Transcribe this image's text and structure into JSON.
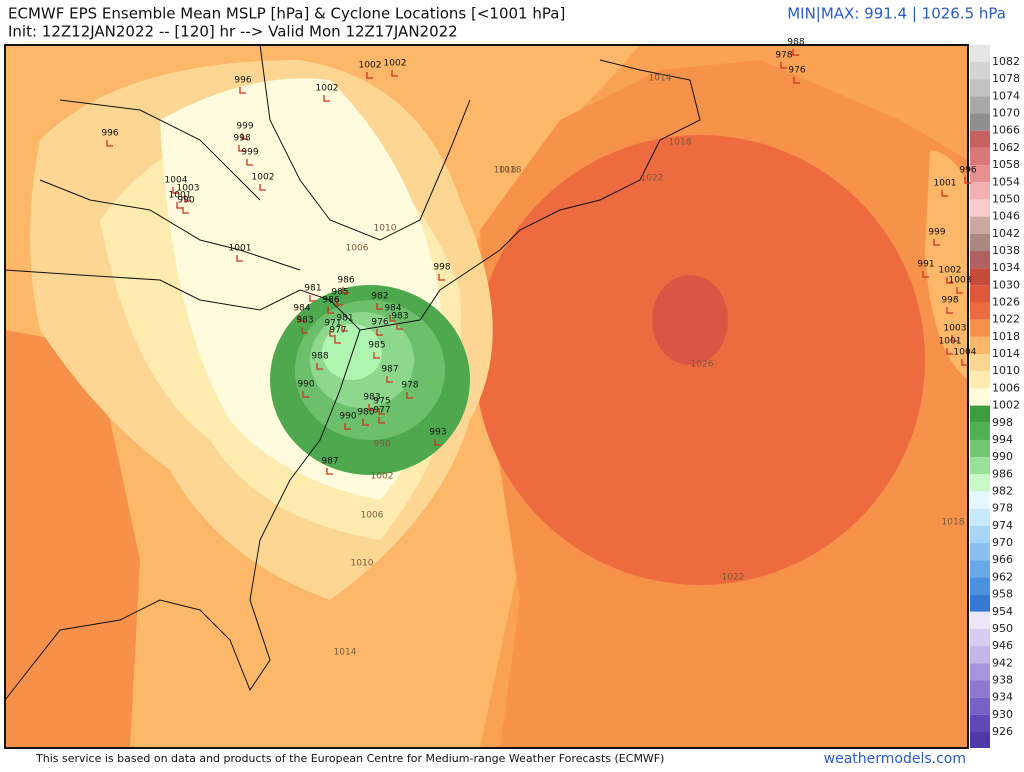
{
  "header": {
    "title": "ECMWF EPS Ensemble Mean MSLP [hPa] & Cyclone Locations [<1001 hPa]",
    "init": "Init: 12Z12JAN2022 -- [120] hr --> Valid Mon 12Z17JAN2022",
    "minmax": "MIN|MAX: 991.4 | 1026.5 hPa"
  },
  "colorbar": {
    "labels": [
      1082,
      1078,
      1074,
      1070,
      1066,
      1062,
      1058,
      1054,
      1050,
      1046,
      1042,
      1038,
      1034,
      1030,
      1026,
      1022,
      1018,
      1014,
      1010,
      1006,
      1002,
      998,
      994,
      990,
      986,
      982,
      978,
      974,
      970,
      966,
      962,
      958,
      954,
      950,
      946,
      942,
      938,
      934,
      930,
      926
    ],
    "colors": [
      "#e6e6e6",
      "#d4d4d4",
      "#c2c2c2",
      "#a8a8a8",
      "#8f8f8f",
      "#c86060",
      "#d87878",
      "#e89090",
      "#f4b0b0",
      "#f8cccc",
      "#c8a8a0",
      "#a88880",
      "#b06060",
      "#c84a3a",
      "#e0583a",
      "#ee6b40",
      "#f7924a",
      "#fcb768",
      "#fdd693",
      "#feebb0",
      "#fffbdc",
      "#3e9e3e",
      "#52b052",
      "#72c872",
      "#98e098",
      "#c8f8c8",
      "#e4f8ff",
      "#c8e8fc",
      "#a8d4f8",
      "#88c0f0",
      "#68a8e8",
      "#4c90e0",
      "#3878d4",
      "#ece6f8",
      "#d8ccf0",
      "#c4b4e8",
      "#a894dc",
      "#9078d0",
      "#7860c4",
      "#6048b8"
    ]
  },
  "contour_labels": [
    "1014",
    "1018",
    "1018",
    "1018",
    "1022",
    "1022",
    "1026",
    "1010",
    "1010",
    "1006",
    "1006",
    "1002",
    "998",
    "1014",
    "1018"
  ],
  "cyclones": [
    "988",
    "978",
    "976",
    "996",
    "1002",
    "1002",
    "1002",
    "996",
    "999",
    "998",
    "999",
    "1002",
    "1004",
    "1001",
    "1003",
    "990",
    "1001",
    "998",
    "981",
    "985",
    "986",
    "982",
    "984",
    "983",
    "977",
    "976",
    "971",
    "984",
    "983",
    "986",
    "988",
    "990",
    "981",
    "985",
    "987",
    "978",
    "983",
    "975",
    "977",
    "990",
    "980",
    "993",
    "987",
    "996",
    "1001",
    "999",
    "991",
    "1002",
    "1003",
    "998",
    "1003",
    "1001",
    "1004"
  ],
  "footer": {
    "credit": "This service is based on data and products of the European Centre for Medium-range Weather Forecasts (ECMWF)",
    "site": "weathermodels.com"
  }
}
